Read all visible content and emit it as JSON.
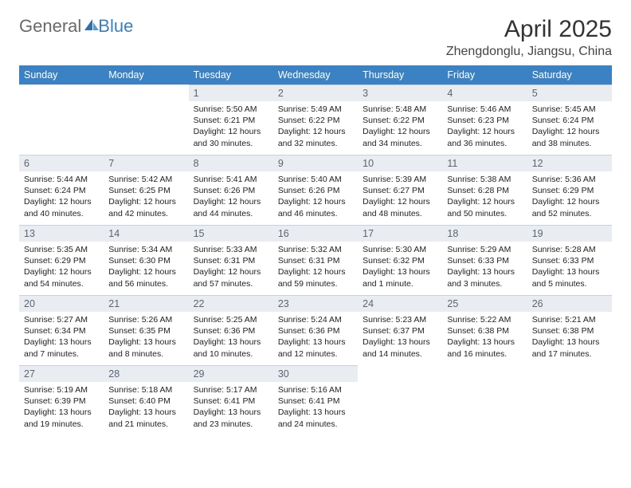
{
  "brand": {
    "part1": "General",
    "part2": "Blue"
  },
  "title": "April 2025",
  "location": "Zhengdonglu, Jiangsu, China",
  "colors": {
    "header_bg": "#3a82c4",
    "header_text": "#ffffff",
    "daynum_bg": "#e9edf1",
    "daynum_text": "#5a6570",
    "body_text": "#222222",
    "page_bg": "#ffffff",
    "logo_gray": "#6a6a6a",
    "logo_blue": "#3a7fc4"
  },
  "typography": {
    "title_fontsize": 30,
    "location_fontsize": 16,
    "dayheader_fontsize": 12.5,
    "daynum_fontsize": 12.5,
    "cell_fontsize": 10.5
  },
  "weekdays": [
    "Sunday",
    "Monday",
    "Tuesday",
    "Wednesday",
    "Thursday",
    "Friday",
    "Saturday"
  ],
  "weeks": [
    [
      {
        "n": "",
        "sunrise": "",
        "sunset": "",
        "daylight": "",
        "empty": true
      },
      {
        "n": "",
        "sunrise": "",
        "sunset": "",
        "daylight": "",
        "empty": true
      },
      {
        "n": "1",
        "sunrise": "Sunrise: 5:50 AM",
        "sunset": "Sunset: 6:21 PM",
        "daylight": "Daylight: 12 hours and 30 minutes."
      },
      {
        "n": "2",
        "sunrise": "Sunrise: 5:49 AM",
        "sunset": "Sunset: 6:22 PM",
        "daylight": "Daylight: 12 hours and 32 minutes."
      },
      {
        "n": "3",
        "sunrise": "Sunrise: 5:48 AM",
        "sunset": "Sunset: 6:22 PM",
        "daylight": "Daylight: 12 hours and 34 minutes."
      },
      {
        "n": "4",
        "sunrise": "Sunrise: 5:46 AM",
        "sunset": "Sunset: 6:23 PM",
        "daylight": "Daylight: 12 hours and 36 minutes."
      },
      {
        "n": "5",
        "sunrise": "Sunrise: 5:45 AM",
        "sunset": "Sunset: 6:24 PM",
        "daylight": "Daylight: 12 hours and 38 minutes."
      }
    ],
    [
      {
        "n": "6",
        "sunrise": "Sunrise: 5:44 AM",
        "sunset": "Sunset: 6:24 PM",
        "daylight": "Daylight: 12 hours and 40 minutes."
      },
      {
        "n": "7",
        "sunrise": "Sunrise: 5:42 AM",
        "sunset": "Sunset: 6:25 PM",
        "daylight": "Daylight: 12 hours and 42 minutes."
      },
      {
        "n": "8",
        "sunrise": "Sunrise: 5:41 AM",
        "sunset": "Sunset: 6:26 PM",
        "daylight": "Daylight: 12 hours and 44 minutes."
      },
      {
        "n": "9",
        "sunrise": "Sunrise: 5:40 AM",
        "sunset": "Sunset: 6:26 PM",
        "daylight": "Daylight: 12 hours and 46 minutes."
      },
      {
        "n": "10",
        "sunrise": "Sunrise: 5:39 AM",
        "sunset": "Sunset: 6:27 PM",
        "daylight": "Daylight: 12 hours and 48 minutes."
      },
      {
        "n": "11",
        "sunrise": "Sunrise: 5:38 AM",
        "sunset": "Sunset: 6:28 PM",
        "daylight": "Daylight: 12 hours and 50 minutes."
      },
      {
        "n": "12",
        "sunrise": "Sunrise: 5:36 AM",
        "sunset": "Sunset: 6:29 PM",
        "daylight": "Daylight: 12 hours and 52 minutes."
      }
    ],
    [
      {
        "n": "13",
        "sunrise": "Sunrise: 5:35 AM",
        "sunset": "Sunset: 6:29 PM",
        "daylight": "Daylight: 12 hours and 54 minutes."
      },
      {
        "n": "14",
        "sunrise": "Sunrise: 5:34 AM",
        "sunset": "Sunset: 6:30 PM",
        "daylight": "Daylight: 12 hours and 56 minutes."
      },
      {
        "n": "15",
        "sunrise": "Sunrise: 5:33 AM",
        "sunset": "Sunset: 6:31 PM",
        "daylight": "Daylight: 12 hours and 57 minutes."
      },
      {
        "n": "16",
        "sunrise": "Sunrise: 5:32 AM",
        "sunset": "Sunset: 6:31 PM",
        "daylight": "Daylight: 12 hours and 59 minutes."
      },
      {
        "n": "17",
        "sunrise": "Sunrise: 5:30 AM",
        "sunset": "Sunset: 6:32 PM",
        "daylight": "Daylight: 13 hours and 1 minute."
      },
      {
        "n": "18",
        "sunrise": "Sunrise: 5:29 AM",
        "sunset": "Sunset: 6:33 PM",
        "daylight": "Daylight: 13 hours and 3 minutes."
      },
      {
        "n": "19",
        "sunrise": "Sunrise: 5:28 AM",
        "sunset": "Sunset: 6:33 PM",
        "daylight": "Daylight: 13 hours and 5 minutes."
      }
    ],
    [
      {
        "n": "20",
        "sunrise": "Sunrise: 5:27 AM",
        "sunset": "Sunset: 6:34 PM",
        "daylight": "Daylight: 13 hours and 7 minutes."
      },
      {
        "n": "21",
        "sunrise": "Sunrise: 5:26 AM",
        "sunset": "Sunset: 6:35 PM",
        "daylight": "Daylight: 13 hours and 8 minutes."
      },
      {
        "n": "22",
        "sunrise": "Sunrise: 5:25 AM",
        "sunset": "Sunset: 6:36 PM",
        "daylight": "Daylight: 13 hours and 10 minutes."
      },
      {
        "n": "23",
        "sunrise": "Sunrise: 5:24 AM",
        "sunset": "Sunset: 6:36 PM",
        "daylight": "Daylight: 13 hours and 12 minutes."
      },
      {
        "n": "24",
        "sunrise": "Sunrise: 5:23 AM",
        "sunset": "Sunset: 6:37 PM",
        "daylight": "Daylight: 13 hours and 14 minutes."
      },
      {
        "n": "25",
        "sunrise": "Sunrise: 5:22 AM",
        "sunset": "Sunset: 6:38 PM",
        "daylight": "Daylight: 13 hours and 16 minutes."
      },
      {
        "n": "26",
        "sunrise": "Sunrise: 5:21 AM",
        "sunset": "Sunset: 6:38 PM",
        "daylight": "Daylight: 13 hours and 17 minutes."
      }
    ],
    [
      {
        "n": "27",
        "sunrise": "Sunrise: 5:19 AM",
        "sunset": "Sunset: 6:39 PM",
        "daylight": "Daylight: 13 hours and 19 minutes."
      },
      {
        "n": "28",
        "sunrise": "Sunrise: 5:18 AM",
        "sunset": "Sunset: 6:40 PM",
        "daylight": "Daylight: 13 hours and 21 minutes."
      },
      {
        "n": "29",
        "sunrise": "Sunrise: 5:17 AM",
        "sunset": "Sunset: 6:41 PM",
        "daylight": "Daylight: 13 hours and 23 minutes."
      },
      {
        "n": "30",
        "sunrise": "Sunrise: 5:16 AM",
        "sunset": "Sunset: 6:41 PM",
        "daylight": "Daylight: 13 hours and 24 minutes."
      },
      {
        "n": "",
        "sunrise": "",
        "sunset": "",
        "daylight": "",
        "empty": true
      },
      {
        "n": "",
        "sunrise": "",
        "sunset": "",
        "daylight": "",
        "empty": true
      },
      {
        "n": "",
        "sunrise": "",
        "sunset": "",
        "daylight": "",
        "empty": true
      }
    ]
  ]
}
